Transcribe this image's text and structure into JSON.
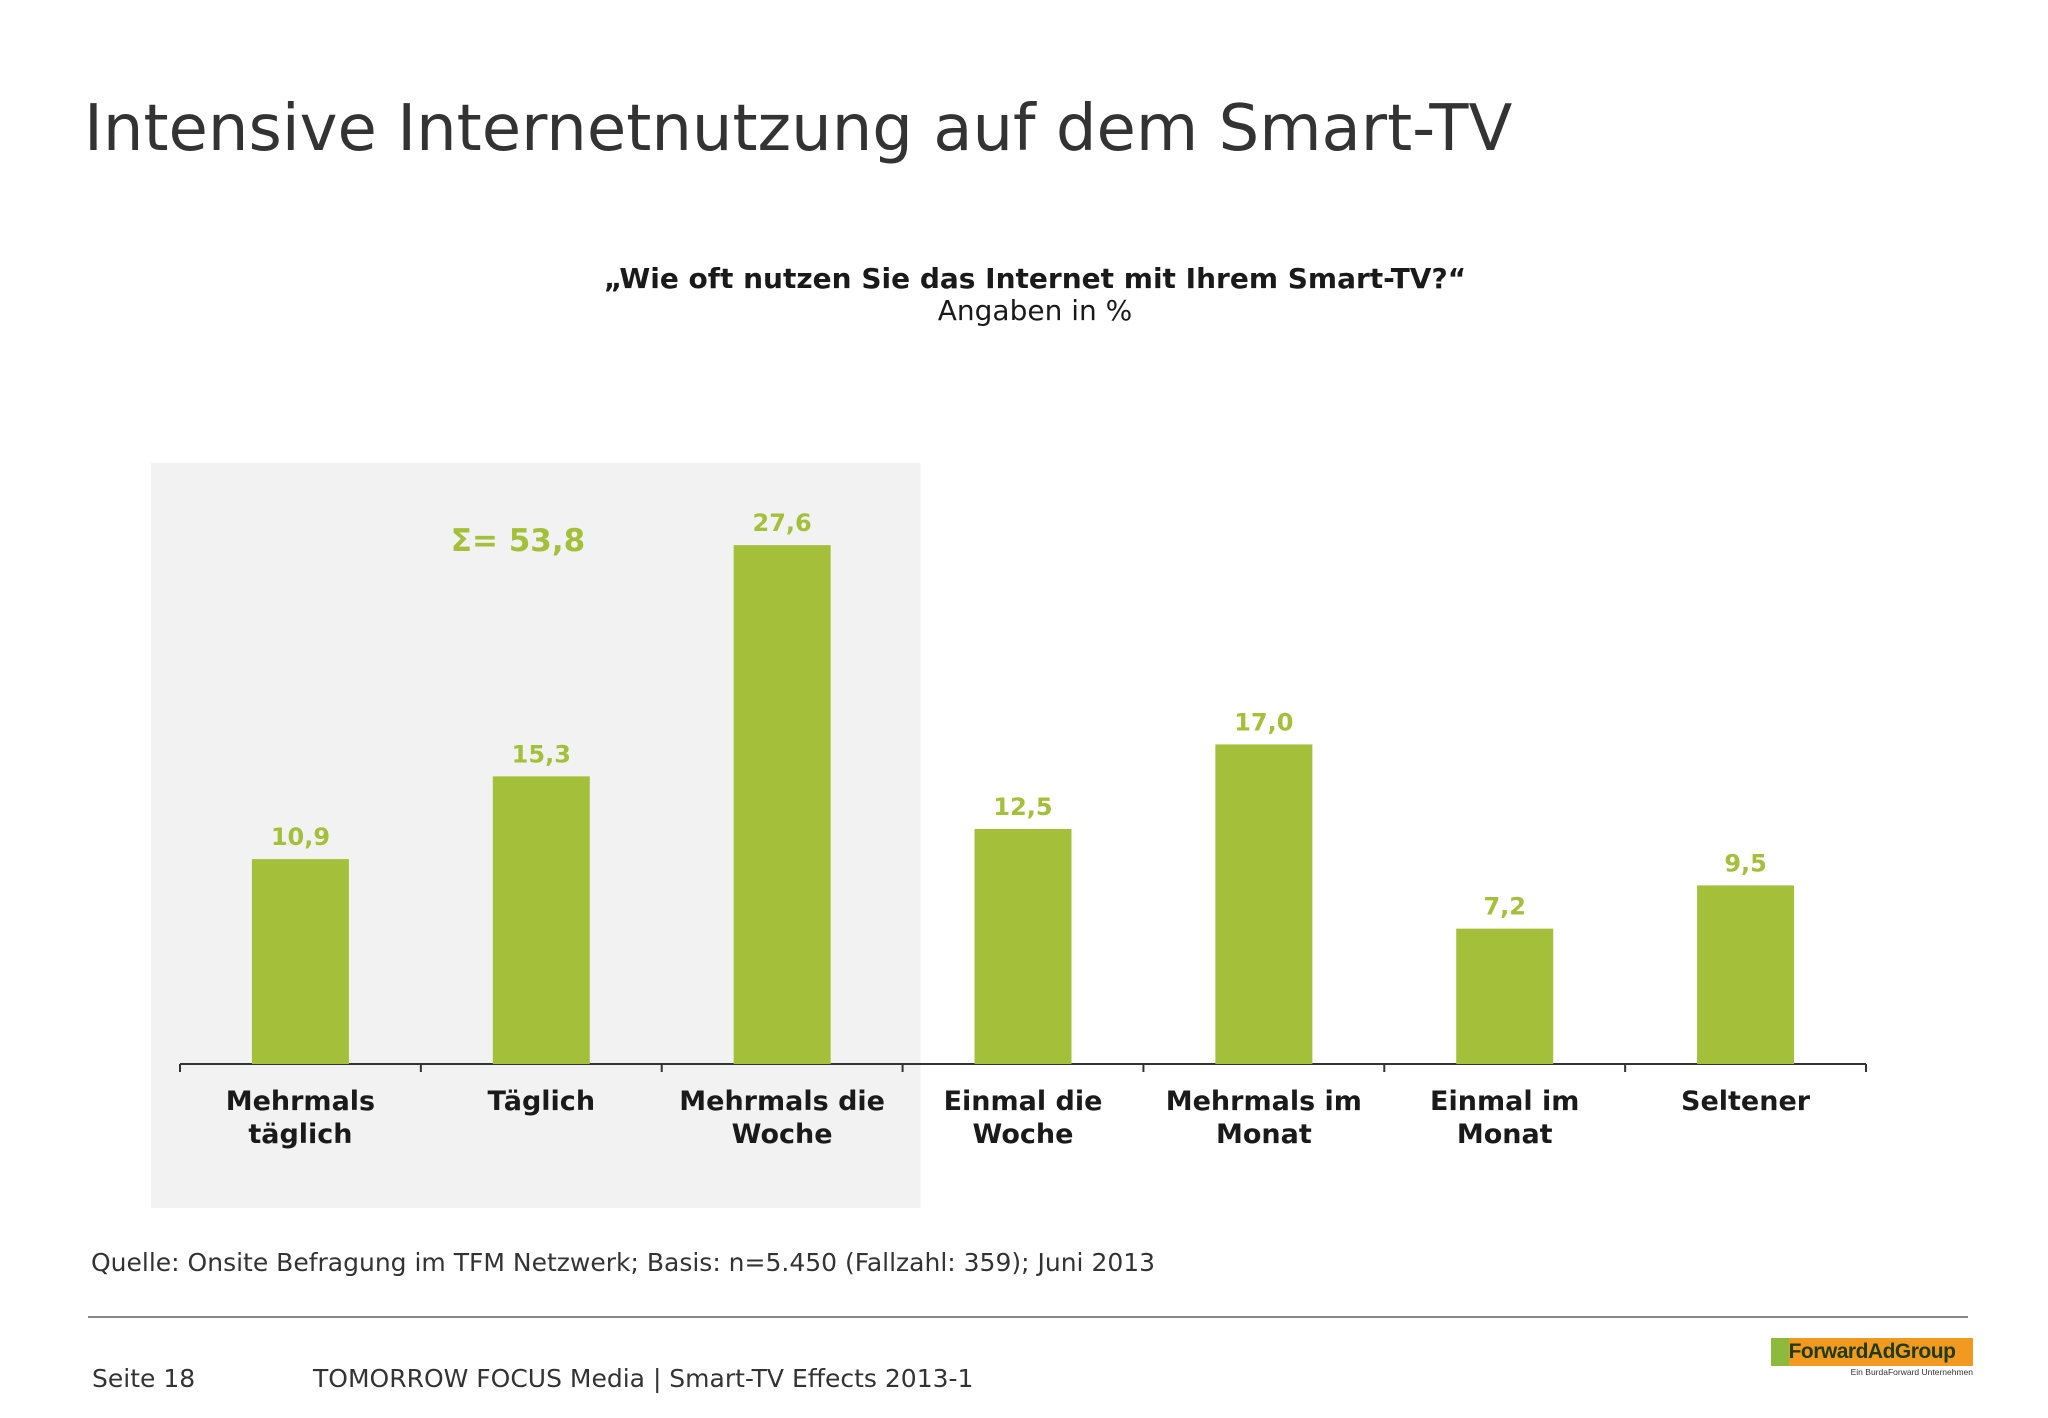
{
  "page": {
    "title": "Intensive Internetnutzung auf dem Smart-TV",
    "source": "Quelle: Onsite Befragung im TFM Netzwerk; Basis: n=5.450 (Fallzahl: 359); Juni 2013",
    "page_number": "Seite 18",
    "footer": "TOMORROW FOCUS Media  |  Smart-TV Effects 2013-1"
  },
  "logo": {
    "name": "ForwardAdGroup",
    "tagline": "Ein BurdaForward Unternehmen"
  },
  "chart_data": {
    "type": "bar",
    "title": "„Wie oft nutzen Sie das Internet mit Ihrem Smart-TV?“",
    "subtitle": "Angaben in %",
    "categories": [
      [
        "Mehrmals",
        "täglich"
      ],
      [
        "Täglich"
      ],
      [
        "Mehrmals die",
        "Woche"
      ],
      [
        "Einmal die",
        "Woche"
      ],
      [
        "Mehrmals im",
        "Monat"
      ],
      [
        "Einmal im",
        "Monat"
      ],
      [
        "Seltener"
      ]
    ],
    "values": [
      10.9,
      15.3,
      27.6,
      12.5,
      17.0,
      7.2,
      9.5
    ],
    "value_labels": [
      "10,9",
      "15,3",
      "27,6",
      "12,5",
      "17,0",
      "7,2",
      "9,5"
    ],
    "ylim": [
      0,
      30
    ],
    "grid": false,
    "bar_color": "#a4c03b",
    "label_color": "#a4c03b",
    "highlight": {
      "categories_from": 0,
      "categories_to": 2,
      "annotation": "Σ= 53,8",
      "background": "#f2f2f2"
    }
  }
}
